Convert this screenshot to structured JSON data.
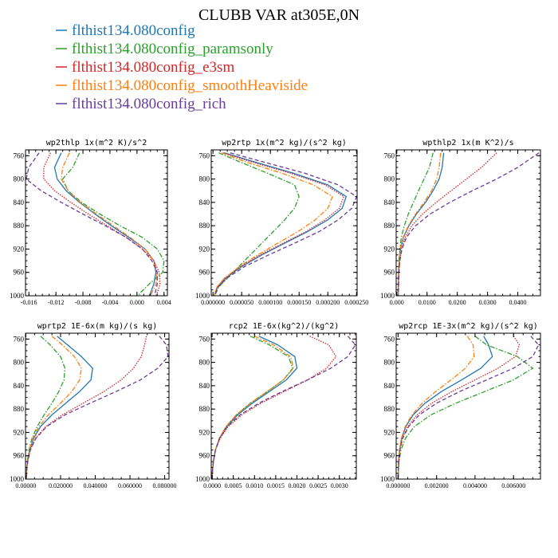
{
  "title": "CLUBB VAR at305E,0N",
  "colors": {
    "blue": "#1f77b4",
    "green": "#2ca02c",
    "red": "#d62728",
    "orange": "#ff7f0e",
    "purple": "#6a3d9a"
  },
  "legend": [
    {
      "label": "flthist134.080config",
      "color": "#1f77b4",
      "dash": "solid"
    },
    {
      "label": "flthist134.080config_paramsonly",
      "color": "#2ca02c",
      "dash": "dashdot"
    },
    {
      "label": "flthist134.080config_e3sm",
      "color": "#d62728",
      "dash": "dotted"
    },
    {
      "label": "flthist134.080config_smoothHeaviside",
      "color": "#ff7f0e",
      "dash": "dashdot"
    },
    {
      "label": "flthist134.080config_rich",
      "color": "#6a3d9a",
      "dash": "dashed"
    }
  ],
  "chart_data": [
    {
      "type": "line",
      "title": "wp2thlp  1x(m^2 K)/s^2",
      "ylim": [
        1000,
        750
      ],
      "yticks": [
        1000,
        960,
        920,
        880,
        840,
        800,
        760
      ],
      "ytick_labels": [
        "1000",
        "960",
        "920",
        "880",
        "840",
        "800",
        "760"
      ],
      "xlim": [
        -0.0165,
        0.0045
      ],
      "xticks": [
        -0.016,
        -0.012,
        -0.008,
        -0.004,
        0.0,
        0.004
      ],
      "xtick_labels": [
        "-0.016",
        "-0.012",
        "-0.008",
        "-0.004",
        "0.000",
        "0.004"
      ],
      "y": [
        755,
        780,
        800,
        820,
        840,
        860,
        880,
        900,
        920,
        940,
        960,
        980,
        995,
        1000
      ],
      "series": [
        {
          "name": "flthist134.080config",
          "x": [
            -0.0112,
            -0.0122,
            -0.0118,
            -0.0105,
            -0.0085,
            -0.0062,
            -0.0038,
            -0.0012,
            0.0012,
            0.0025,
            0.0028,
            0.0025,
            0.002,
            0.0018
          ]
        },
        {
          "name": "flthist134.080config_paramsonly",
          "x": [
            -0.0085,
            -0.0095,
            -0.011,
            -0.0102,
            -0.0082,
            -0.0055,
            -0.0025,
            0.0008,
            0.003,
            0.004,
            0.0038,
            0.0018,
            0.0005,
            0.0002
          ]
        },
        {
          "name": "flthist134.080config_e3sm",
          "x": [
            -0.0128,
            -0.0138,
            -0.0138,
            -0.0122,
            -0.0098,
            -0.0072,
            -0.0044,
            -0.0016,
            0.0008,
            0.0025,
            0.0033,
            0.0034,
            0.003,
            0.0028
          ]
        },
        {
          "name": "flthist134.080config_smoothHeaviside",
          "x": [
            -0.01,
            -0.011,
            -0.0112,
            -0.0102,
            -0.0084,
            -0.006,
            -0.0035,
            -0.001,
            0.0012,
            0.0025,
            0.003,
            0.0028,
            0.0022,
            0.002
          ]
        },
        {
          "name": "flthist134.080config_rich",
          "x": [
            -0.0145,
            -0.016,
            -0.0164,
            -0.0142,
            -0.0112,
            -0.008,
            -0.0047,
            -0.0016,
            0.0008,
            0.0022,
            0.003,
            0.003,
            0.0027,
            0.0025
          ]
        }
      ]
    },
    {
      "type": "line",
      "title": "wp2rtp  1x(m^2 kg)/(s^2 kg)",
      "ylim": [
        1000,
        750
      ],
      "yticks": [
        1000,
        960,
        920,
        880,
        840,
        800,
        760
      ],
      "ytick_labels": [
        "1000",
        "960",
        "920",
        "880",
        "840",
        "800",
        "760"
      ],
      "xlim": [
        -3e-06,
        0.000251
      ],
      "xticks": [
        0.0,
        5e-05,
        0.0001,
        0.00015,
        0.0002,
        0.00025
      ],
      "xtick_labels": [
        "0.000000",
        "0.000050",
        "0.000100",
        "0.000150",
        "0.000200",
        "0.000250"
      ],
      "y": [
        755,
        770,
        790,
        810,
        830,
        850,
        870,
        890,
        910,
        930,
        950,
        970,
        985,
        1000
      ],
      "series": [
        {
          "name": "flthist134.080config",
          "x": [
            2e-05,
            7e-05,
            0.00014,
            0.0002,
            0.000232,
            0.000225,
            0.0002,
            0.000165,
            0.000125,
            8.5e-05,
            5e-05,
            2.2e-05,
            8e-06,
            2e-06
          ]
        },
        {
          "name": "flthist134.080config_paramsonly",
          "x": [
            1e-05,
            4.5e-05,
            9.5e-05,
            0.000142,
            0.00015,
            0.000142,
            0.000125,
            0.000105,
            8.5e-05,
            6.5e-05,
            4.5e-05,
            2.5e-05,
            1e-05,
            3e-06
          ]
        },
        {
          "name": "flthist134.080config_e3sm",
          "x": [
            1.8e-05,
            6.5e-05,
            0.000135,
            0.000195,
            0.000228,
            0.00022,
            0.000195,
            0.000162,
            0.000122,
            8.2e-05,
            4.8e-05,
            2e-05,
            7e-06,
            2e-06
          ]
        },
        {
          "name": "flthist134.080config_smoothHeaviside",
          "x": [
            1.5e-05,
            5.5e-05,
            0.00012,
            0.000175,
            0.000208,
            0.0002,
            0.000178,
            0.000148,
            0.000113,
            7.8e-05,
            4.6e-05,
            2e-05,
            7e-06,
            2e-06
          ]
        },
        {
          "name": "flthist134.080config_rich",
          "x": [
            3e-05,
            8.5e-05,
            0.00016,
            0.000218,
            0.00025,
            0.000242,
            0.000218,
            0.000185,
            0.000142,
            9.7e-05,
            5.5e-05,
            2.4e-05,
            9e-06,
            3e-06
          ]
        }
      ]
    },
    {
      "type": "line",
      "title": "wpthlp2  1x(m K^2)/s",
      "ylim": [
        1000,
        750
      ],
      "yticks": [
        1000,
        960,
        920,
        880,
        840,
        800,
        760
      ],
      "ytick_labels": [
        "1000",
        "960",
        "920",
        "880",
        "840",
        "800",
        "760"
      ],
      "xlim": [
        -0.0002,
        0.0475
      ],
      "xticks": [
        0.0,
        0.01,
        0.02,
        0.03,
        0.04
      ],
      "xtick_labels": [
        "0.000",
        "0.0100",
        "0.0200",
        "0.0300",
        "0.0400"
      ],
      "y": [
        755,
        780,
        800,
        820,
        840,
        860,
        880,
        900,
        920,
        940,
        960,
        980,
        1000
      ],
      "series": [
        {
          "name": "flthist134.080config",
          "x": [
            0.0155,
            0.015,
            0.014,
            0.012,
            0.0095,
            0.0065,
            0.004,
            0.0022,
            0.0012,
            0.0008,
            0.0006,
            0.0005,
            0.0004
          ]
        },
        {
          "name": "flthist134.080config_paramsonly",
          "x": [
            0.012,
            0.0108,
            0.009,
            0.0072,
            0.0055,
            0.0038,
            0.0025,
            0.0015,
            0.001,
            0.0007,
            0.0006,
            0.0005,
            0.0004
          ]
        },
        {
          "name": "flthist134.080config_e3sm",
          "x": [
            0.033,
            0.028,
            0.023,
            0.018,
            0.013,
            0.0085,
            0.005,
            0.0028,
            0.0015,
            0.001,
            0.0007,
            0.0006,
            0.0005
          ]
        },
        {
          "name": "flthist134.080config_smoothHeaviside",
          "x": [
            0.0145,
            0.014,
            0.0132,
            0.0115,
            0.009,
            0.0062,
            0.0038,
            0.0021,
            0.0011,
            0.0008,
            0.0006,
            0.0005,
            0.0004
          ]
        },
        {
          "name": "flthist134.080config_rich",
          "x": [
            0.047,
            0.04,
            0.033,
            0.025,
            0.0175,
            0.011,
            0.0062,
            0.0032,
            0.0017,
            0.001,
            0.0007,
            0.0006,
            0.0005
          ]
        }
      ]
    },
    {
      "type": "line",
      "title": "wprtp2  1E-6x(m kg)/(s kg)",
      "ylim": [
        1000,
        750
      ],
      "yticks": [
        1000,
        960,
        920,
        880,
        840,
        800,
        760
      ],
      "ytick_labels": [
        "1000",
        "960",
        "920",
        "880",
        "840",
        "800",
        "760"
      ],
      "xlim": [
        -0.0002,
        0.0825
      ],
      "xticks": [
        0.0,
        0.02,
        0.04,
        0.06,
        0.08
      ],
      "xtick_labels": [
        "0.00000",
        "0.020000",
        "0.040000",
        "0.060000",
        "0.080000"
      ],
      "y": [
        755,
        770,
        790,
        810,
        830,
        850,
        870,
        890,
        910,
        930,
        950,
        970,
        985,
        1000
      ],
      "series": [
        {
          "name": "flthist134.080config",
          "x": [
            0.018,
            0.024,
            0.032,
            0.0385,
            0.0375,
            0.031,
            0.023,
            0.015,
            0.0085,
            0.0045,
            0.0022,
            0.001,
            0.0005,
            0.0003
          ]
        },
        {
          "name": "flthist134.080config_paramsonly",
          "x": [
            0.0085,
            0.014,
            0.02,
            0.0225,
            0.022,
            0.019,
            0.015,
            0.0105,
            0.0065,
            0.0035,
            0.0018,
            0.0008,
            0.0004,
            0.0002
          ]
        },
        {
          "name": "flthist134.080config_e3sm",
          "x": [
            0.0695,
            0.0685,
            0.0665,
            0.062,
            0.055,
            0.045,
            0.033,
            0.021,
            0.0115,
            0.0055,
            0.0025,
            0.0011,
            0.0005,
            0.0003
          ]
        },
        {
          "name": "flthist134.080config_smoothHeaviside",
          "x": [
            0.015,
            0.021,
            0.028,
            0.032,
            0.031,
            0.0265,
            0.02,
            0.013,
            0.0075,
            0.004,
            0.002,
            0.0009,
            0.0004,
            0.0002
          ]
        },
        {
          "name": "flthist134.080config_rich",
          "x": [
            0.077,
            0.081,
            0.082,
            0.076,
            0.066,
            0.052,
            0.037,
            0.0225,
            0.012,
            0.0058,
            0.0026,
            0.0011,
            0.0005,
            0.0003
          ]
        }
      ]
    },
    {
      "type": "line",
      "title": "rcp2  1E-6x(kg^2)/(kg^2)",
      "ylim": [
        1000,
        750
      ],
      "yticks": [
        1000,
        960,
        920,
        880,
        840,
        800,
        760
      ],
      "ytick_labels": [
        "1000",
        "960",
        "920",
        "880",
        "840",
        "800",
        "760"
      ],
      "xlim": [
        -2e-05,
        0.0034
      ],
      "xticks": [
        0.0,
        0.0005,
        0.001,
        0.0015,
        0.002,
        0.0025,
        0.003
      ],
      "xtick_labels": [
        "0.0000",
        "0.0005",
        "0.0010",
        "0.0015",
        "0.0020",
        "0.0025",
        "0.0030"
      ],
      "y": [
        755,
        770,
        790,
        810,
        830,
        850,
        870,
        890,
        910,
        930,
        950,
        970,
        985,
        1000
      ],
      "series": [
        {
          "name": "flthist134.080config",
          "x": [
            0.0011,
            0.00155,
            0.00195,
            0.002,
            0.00175,
            0.00135,
            0.00095,
            0.0006,
            0.00035,
            0.00018,
            8e-05,
            3e-05,
            1e-05,
            0.0
          ]
        },
        {
          "name": "flthist134.080config_paramsonly",
          "x": [
            0.0009,
            0.00135,
            0.0018,
            0.0019,
            0.00168,
            0.0013,
            0.0009,
            0.00057,
            0.00033,
            0.00017,
            8e-05,
            3e-05,
            1e-05,
            0.0
          ]
        },
        {
          "name": "flthist134.080config_e3sm",
          "x": [
            0.0023,
            0.00275,
            0.00292,
            0.0027,
            0.00225,
            0.0017,
            0.00115,
            0.0007,
            0.00038,
            0.00019,
            8e-05,
            3e-05,
            1e-05,
            0.0
          ]
        },
        {
          "name": "flthist134.080config_smoothHeaviside",
          "x": [
            0.001,
            0.00145,
            0.00185,
            0.00192,
            0.00168,
            0.0013,
            0.0009,
            0.00057,
            0.00033,
            0.00017,
            8e-05,
            3e-05,
            1e-05,
            0.0
          ]
        },
        {
          "name": "flthist134.080config_rich",
          "x": [
            0.0032,
            0.00338,
            0.0032,
            0.0028,
            0.00225,
            0.00165,
            0.0011,
            0.00066,
            0.00036,
            0.00018,
            8e-05,
            3e-05,
            1e-05,
            0.0
          ]
        }
      ]
    },
    {
      "type": "line",
      "title": "wp2rcp  1E-3x(m^2 kg)/(s^2 kg)",
      "ylim": [
        1000,
        750
      ],
      "yticks": [
        1000,
        960,
        920,
        880,
        840,
        800,
        760
      ],
      "ytick_labels": [
        "1000",
        "960",
        "920",
        "880",
        "840",
        "800",
        "760"
      ],
      "xlim": [
        -0.0001,
        0.0074
      ],
      "xticks": [
        0.0,
        0.002,
        0.004,
        0.006
      ],
      "xtick_labels": [
        "0.000000",
        "0.002000",
        "0.004000",
        "0.006000"
      ],
      "y": [
        755,
        770,
        790,
        810,
        830,
        850,
        870,
        890,
        910,
        930,
        950,
        970,
        985,
        1000
      ],
      "series": [
        {
          "name": "flthist134.080config",
          "x": [
            0.00445,
            0.0047,
            0.0049,
            0.0043,
            0.0033,
            0.00225,
            0.0014,
            0.00078,
            0.0004,
            0.00018,
            8e-05,
            3e-05,
            1e-05,
            0.0
          ]
        },
        {
          "name": "flthist134.080config_paramsonly",
          "x": [
            0.004,
            0.0046,
            0.0062,
            0.007,
            0.006,
            0.0045,
            0.003,
            0.0017,
            0.00085,
            0.00038,
            0.00015,
            5e-05,
            2e-05,
            0.0
          ]
        },
        {
          "name": "flthist134.080config_e3sm",
          "x": [
            0.006,
            0.0063,
            0.0061,
            0.0052,
            0.004,
            0.0028,
            0.00175,
            0.00098,
            0.0005,
            0.00022,
            9e-05,
            3e-05,
            1e-05,
            0.0
          ]
        },
        {
          "name": "flthist134.080config_smoothHeaviside",
          "x": [
            0.0036,
            0.0039,
            0.00395,
            0.0035,
            0.00275,
            0.00195,
            0.00125,
            0.00072,
            0.00037,
            0.00017,
            7e-05,
            3e-05,
            1e-05,
            0.0
          ]
        },
        {
          "name": "flthist134.080config_rich",
          "x": [
            0.0069,
            0.0073,
            0.007,
            0.006,
            0.0046,
            0.0032,
            0.002,
            0.0011,
            0.00055,
            0.00024,
            9e-05,
            3e-05,
            1e-05,
            0.0
          ]
        }
      ]
    }
  ]
}
